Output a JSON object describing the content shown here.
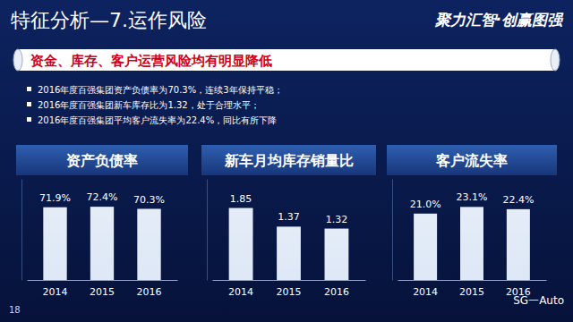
{
  "slide": {
    "title": "特征分析—7.运作风险",
    "logo": "聚力汇智·创赢图强",
    "banner": "资金、库存、客户运营风险均有明显降低",
    "bullets": [
      "2016年度百强集团资产负债率为70.3%，连续3年保持平稳；",
      "2016年度百强集团新车库存比为1.32，处于合理水平；",
      "2016年度百强集团平均客户流失率为22.4%，同比有所下降"
    ],
    "page_number": "18",
    "footer": "SG一Auto"
  },
  "chart_data": [
    {
      "type": "bar",
      "title": "资产负债率",
      "categories": [
        "2014",
        "2015",
        "2016"
      ],
      "values": [
        71.9,
        72.4,
        70.3
      ],
      "value_labels": [
        "71.9%",
        "72.4%",
        "70.3%"
      ],
      "ylim": [
        0,
        100
      ],
      "data_labels": true,
      "tick_labels": "x",
      "color": "#d6e2f4"
    },
    {
      "type": "bar",
      "title": "新车月均库存销量比",
      "categories": [
        "2014",
        "2015",
        "2016"
      ],
      "values": [
        1.85,
        1.37,
        1.32
      ],
      "ylim": [
        0,
        2.6
      ],
      "data_labels": true,
      "tick_labels": "x",
      "color": "#d6e2f4"
    },
    {
      "type": "bar",
      "title": "客户流失率",
      "categories": [
        "2014",
        "2015",
        "2016"
      ],
      "values": [
        21.0,
        23.1,
        22.4
      ],
      "value_labels": [
        "21.0%",
        "23.1%",
        "22.4%"
      ],
      "ylim": [
        0,
        32
      ],
      "data_labels": true,
      "tick_labels": "x",
      "color": "#d6e2f4"
    }
  ]
}
